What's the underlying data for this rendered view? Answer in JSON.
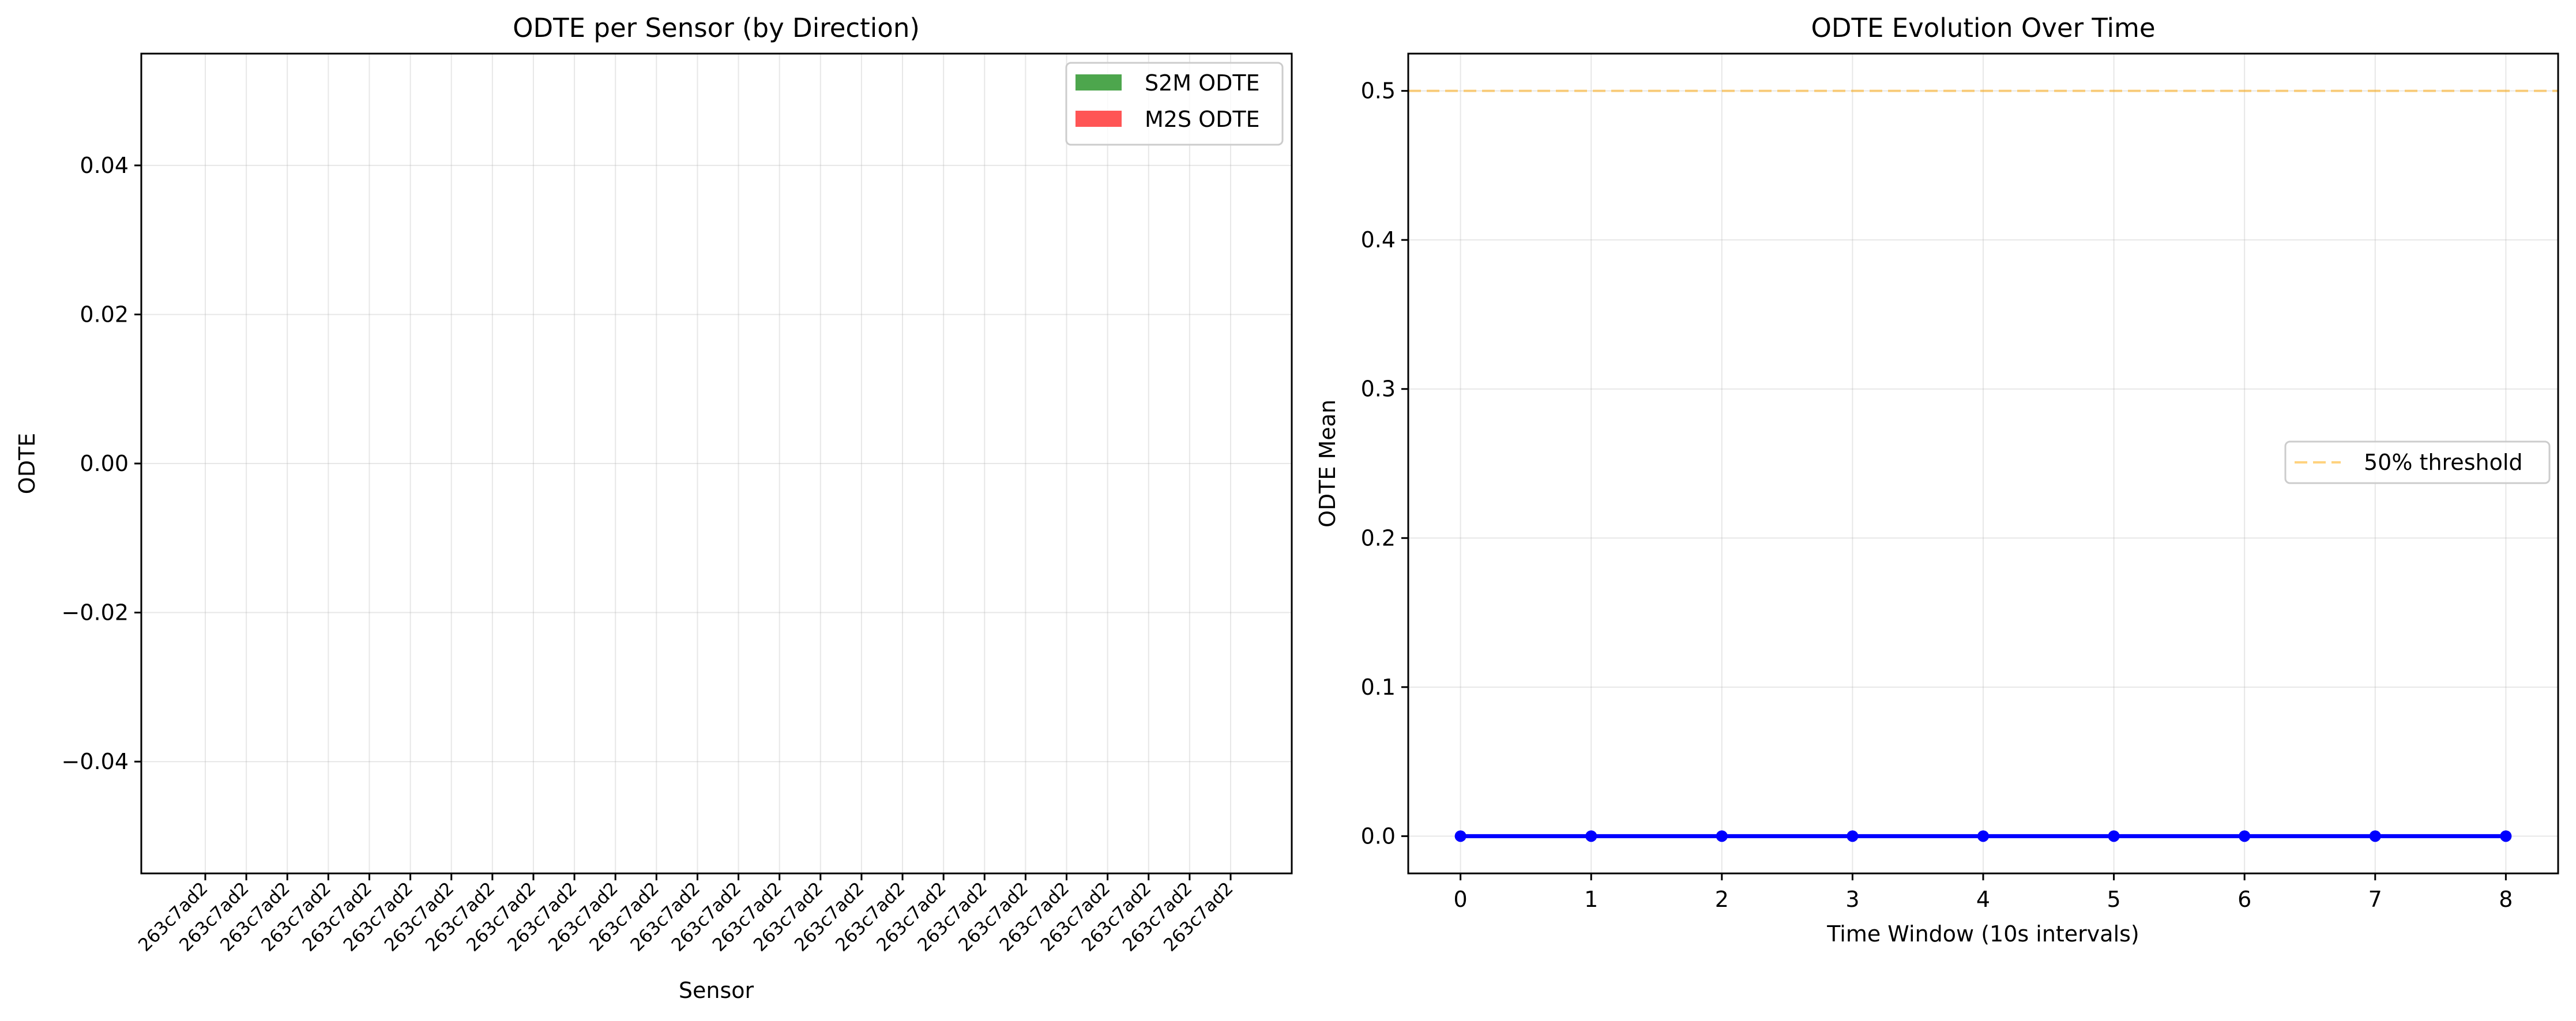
{
  "chart_data": [
    {
      "type": "bar",
      "title": "ODTE per Sensor (by Direction)",
      "xlabel": "Sensor",
      "ylabel": "ODTE",
      "categories": [
        "263c7ad2",
        "263c7ad2",
        "263c7ad2",
        "263c7ad2",
        "263c7ad2",
        "263c7ad2",
        "263c7ad2",
        "263c7ad2",
        "263c7ad2",
        "263c7ad2",
        "263c7ad2",
        "263c7ad2",
        "263c7ad2",
        "263c7ad2",
        "263c7ad2",
        "263c7ad2",
        "263c7ad2",
        "263c7ad2",
        "263c7ad2",
        "263c7ad2",
        "263c7ad2",
        "263c7ad2",
        "263c7ad2",
        "263c7ad2",
        "263c7ad2",
        "263c7ad2"
      ],
      "series": [
        {
          "name": "S2M ODTE",
          "color": "#4da64d",
          "values": [
            0,
            0,
            0,
            0,
            0,
            0,
            0,
            0,
            0,
            0,
            0,
            0,
            0,
            0,
            0,
            0,
            0,
            0,
            0,
            0,
            0,
            0,
            0,
            0,
            0,
            0
          ]
        },
        {
          "name": "M2S ODTE",
          "color": "#ff5555",
          "values": [
            0,
            0,
            0,
            0,
            0,
            0,
            0,
            0,
            0,
            0,
            0,
            0,
            0,
            0,
            0,
            0,
            0,
            0,
            0,
            0,
            0,
            0,
            0,
            0,
            0,
            0
          ]
        }
      ],
      "ylim": [
        -0.055,
        0.055
      ],
      "yticks": [
        -0.04,
        -0.02,
        0.0,
        0.02,
        0.04
      ],
      "ytick_labels": [
        "−0.04",
        "−0.02",
        "0.00",
        "0.02",
        "0.04"
      ],
      "grid": true,
      "legend": "top-right"
    },
    {
      "type": "line",
      "title": "ODTE Evolution Over Time",
      "xlabel": "Time Window (10s intervals)",
      "ylabel": "ODTE Mean",
      "series": [
        {
          "name": "",
          "color": "#0000ff",
          "x": [
            0,
            1,
            2,
            3,
            4,
            5,
            6,
            7,
            8
          ],
          "values": [
            0,
            0,
            0,
            0,
            0,
            0,
            0,
            0,
            0
          ]
        }
      ],
      "threshold": {
        "name": "50% threshold",
        "value": 0.5,
        "color": "#ffa500"
      },
      "xlim": [
        -0.4,
        8.4
      ],
      "ylim": [
        -0.025,
        0.525
      ],
      "xticks": [
        0,
        1,
        2,
        3,
        4,
        5,
        6,
        7,
        8
      ],
      "xtick_labels": [
        "0",
        "1",
        "2",
        "3",
        "4",
        "5",
        "6",
        "7",
        "8"
      ],
      "yticks": [
        0.0,
        0.1,
        0.2,
        0.3,
        0.4,
        0.5
      ],
      "ytick_labels": [
        "0.0",
        "0.1",
        "0.2",
        "0.3",
        "0.4",
        "0.5"
      ],
      "grid": true,
      "legend": "center-right"
    }
  ]
}
